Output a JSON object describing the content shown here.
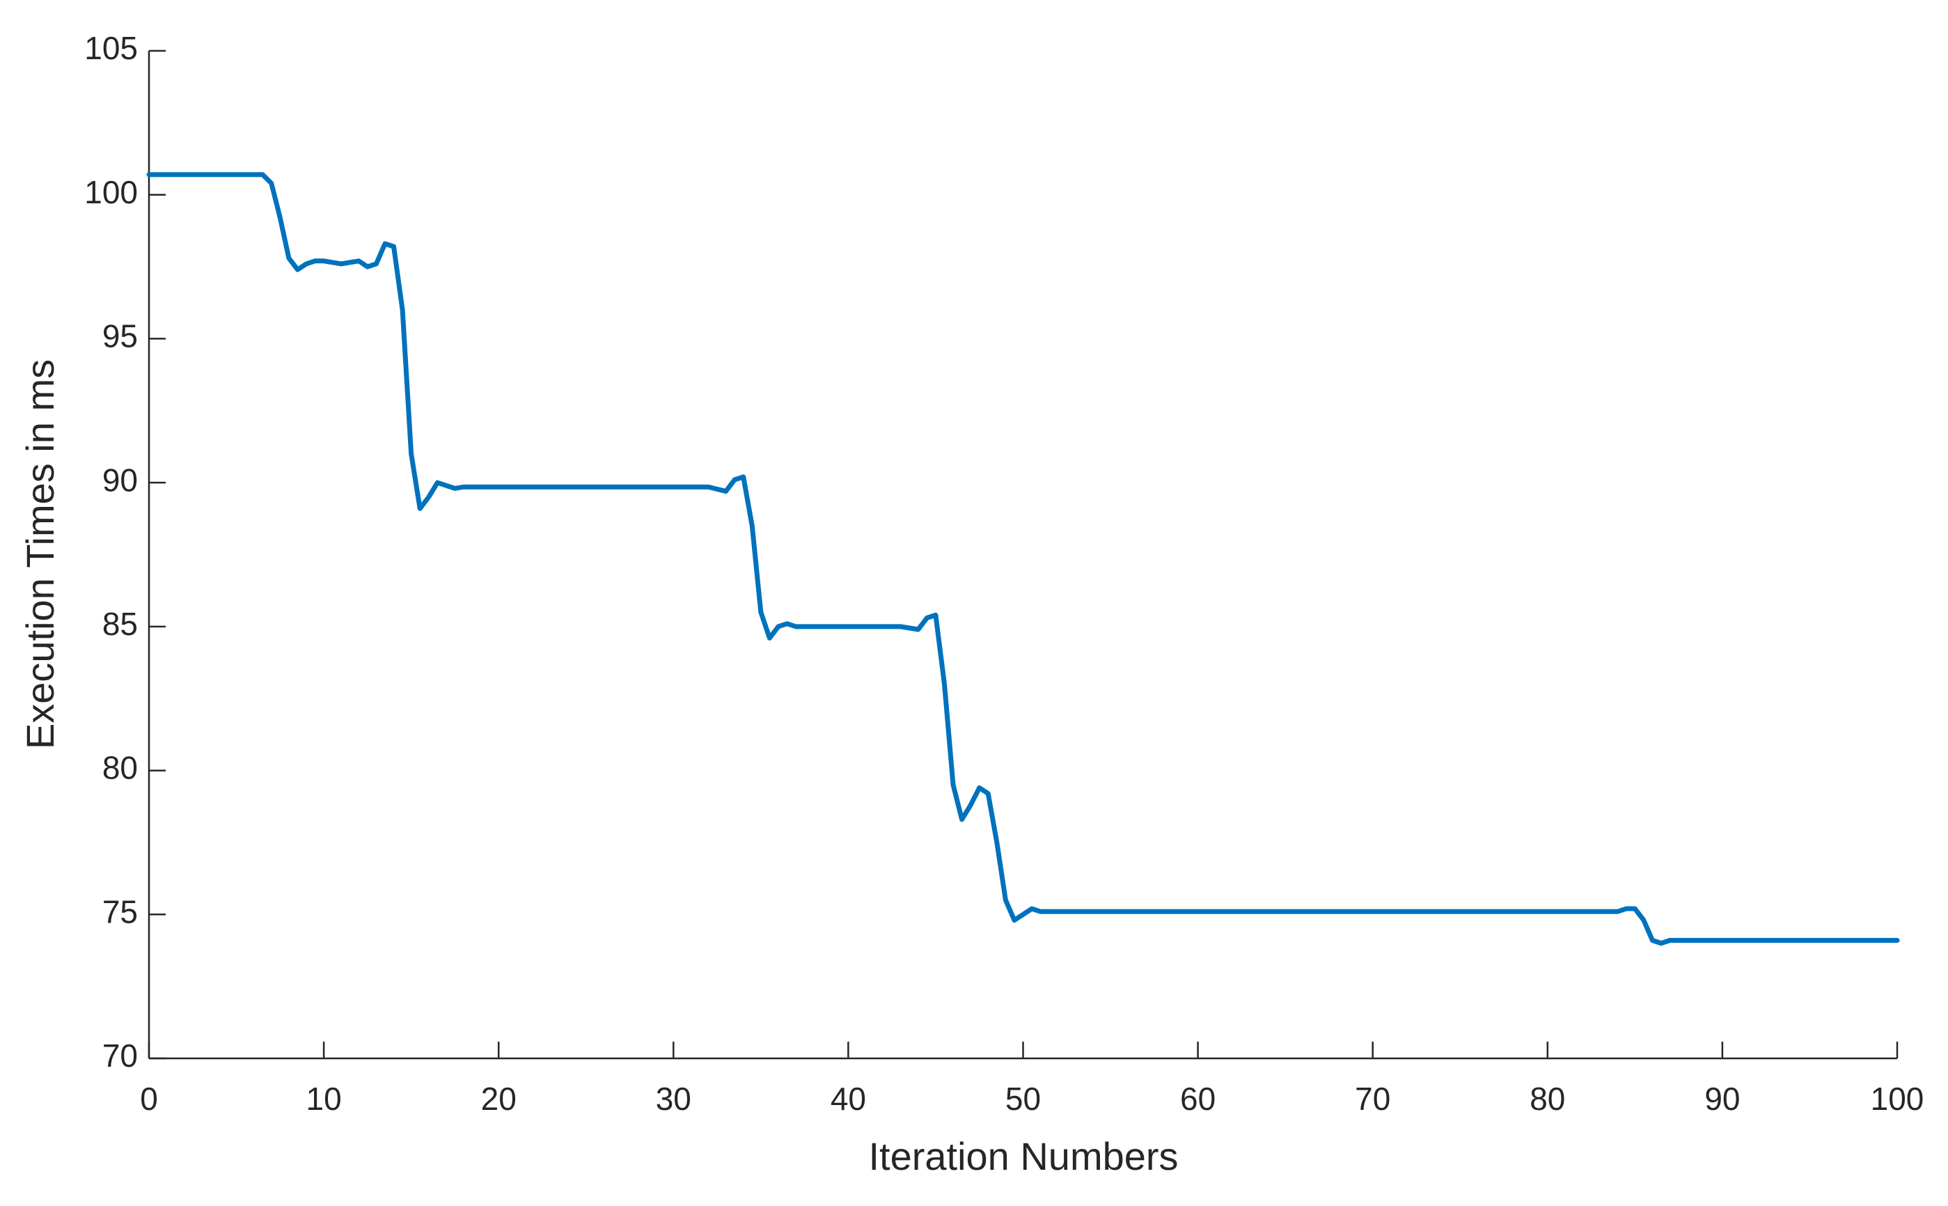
{
  "chart_data": {
    "type": "line",
    "x_label": "Iteration Numbers",
    "y_label": "Execution Times in ms",
    "x": [
      0,
      6,
      6.5,
      7,
      7.5,
      8,
      8.5,
      9,
      9.5,
      10,
      11,
      12,
      12.5,
      13,
      13.5,
      14,
      14.5,
      15,
      15.5,
      16,
      16.5,
      17,
      17.5,
      18,
      20,
      32,
      33,
      33.5,
      34,
      34.5,
      35,
      35.5,
      36,
      36.5,
      37,
      38,
      43,
      44,
      44.5,
      45,
      45.5,
      46,
      46.5,
      47,
      47.5,
      48,
      48.5,
      49,
      49.5,
      50,
      50.5,
      51,
      52,
      84,
      84.5,
      85,
      85.5,
      86,
      86.5,
      87,
      88,
      100
    ],
    "values": [
      100.7,
      100.7,
      100.7,
      100.4,
      99.2,
      97.8,
      97.4,
      97.6,
      97.7,
      97.7,
      97.6,
      97.7,
      97.5,
      97.6,
      98.3,
      98.2,
      96,
      91,
      89.1,
      89.5,
      90.0,
      89.9,
      89.8,
      89.85,
      89.85,
      89.85,
      89.7,
      90.1,
      90.2,
      88.5,
      85.5,
      84.6,
      85.0,
      85.1,
      85.0,
      85.0,
      85.0,
      84.9,
      85.3,
      85.4,
      83,
      79.5,
      78.3,
      78.8,
      79.4,
      79.2,
      77.5,
      75.5,
      74.8,
      75.0,
      75.2,
      75.1,
      75.1,
      75.1,
      75.2,
      75.2,
      74.8,
      74.1,
      74.0,
      74.1,
      74.1,
      74.1
    ],
    "color": "#0072bd",
    "xlim": [
      0,
      100
    ],
    "xticks": [
      0,
      10,
      20,
      30,
      40,
      50,
      60,
      70,
      80,
      90,
      100
    ],
    "ylim": [
      70,
      105
    ],
    "yticks": [
      70,
      75,
      80,
      85,
      90,
      95,
      100,
      105
    ],
    "grid": false
  }
}
